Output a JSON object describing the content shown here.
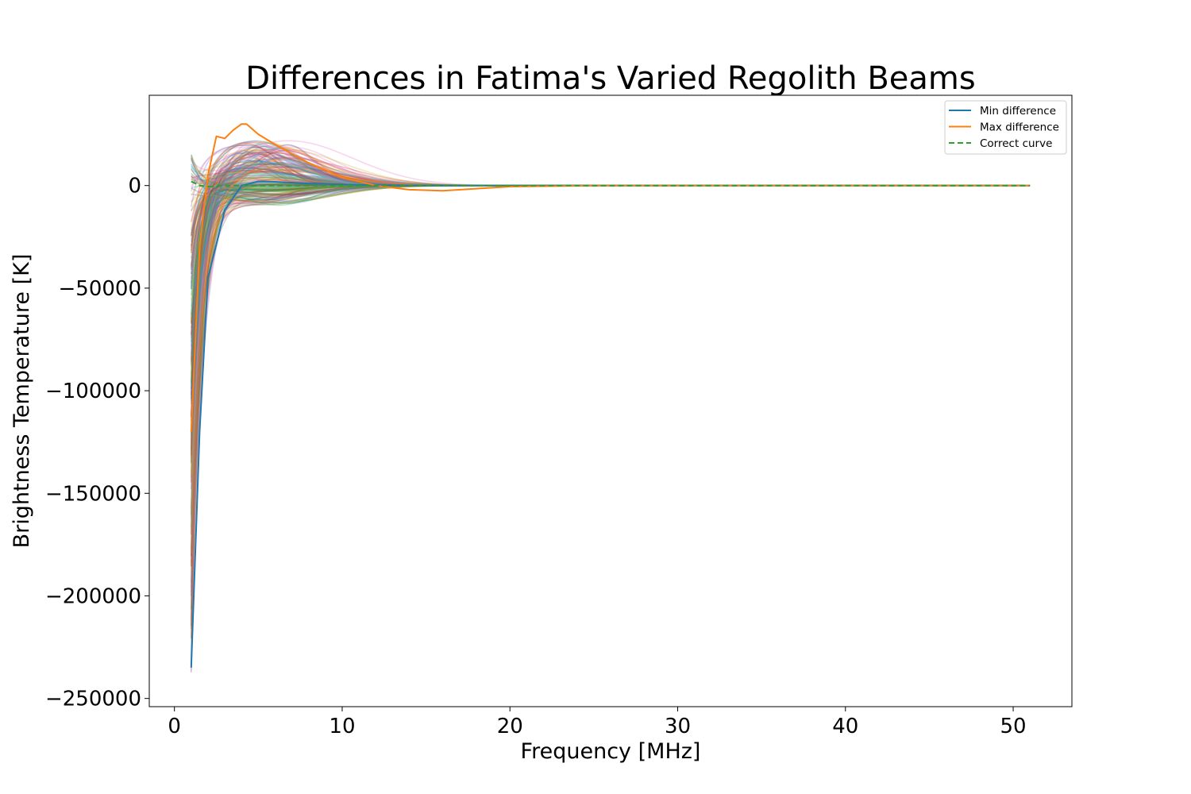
{
  "chart_data": {
    "type": "line",
    "title": "Differences in Fatima's Varied Regolith Beams",
    "xlabel": "Frequency [MHz]",
    "ylabel": "Brightness Temperature [K]",
    "xlim": [
      -1.5,
      53.5
    ],
    "ylim": [
      -254000,
      44000
    ],
    "xticks": [
      0,
      10,
      20,
      30,
      40,
      50
    ],
    "xtick_labels": [
      "0",
      "10",
      "20",
      "30",
      "40",
      "50"
    ],
    "yticks": [
      0,
      -50000,
      -100000,
      -150000,
      -200000,
      -250000
    ],
    "ytick_labels": [
      "0",
      "−50000",
      "−100000",
      "−150000",
      "−200000",
      "−250000"
    ],
    "grid": false,
    "legend_position": "top-right",
    "ensemble": {
      "description_count": 200,
      "x_range": [
        1,
        51
      ],
      "value_range_at_1MHz": [
        -240000,
        18000
      ],
      "peak_region_MHz": [
        3,
        8
      ]
    },
    "series": [
      {
        "name": "Min difference",
        "color": "#1f77b4",
        "style": "solid",
        "x": [
          1,
          1.5,
          2,
          3,
          4,
          5,
          6,
          8,
          10,
          12,
          15,
          20,
          25,
          30,
          40,
          51
        ],
        "y": [
          -235000,
          -120000,
          -45000,
          -12000,
          0,
          2000,
          1800,
          1000,
          500,
          200,
          0,
          -100,
          0,
          0,
          0,
          0
        ]
      },
      {
        "name": "Max difference",
        "color": "#ff7f0e",
        "style": "solid",
        "x": [
          1,
          1.5,
          2,
          2.5,
          3,
          3.5,
          4,
          4.3,
          5,
          6,
          8,
          10,
          12,
          14,
          16,
          18,
          20,
          25,
          30,
          40,
          51
        ],
        "y": [
          -120000,
          -30000,
          5000,
          24000,
          23000,
          27000,
          30000,
          30000,
          25000,
          20000,
          11000,
          4000,
          0,
          -2000,
          -2500,
          -1500,
          -500,
          0,
          0,
          0,
          0
        ]
      },
      {
        "name": "Correct curve",
        "color": "#2ca02c",
        "style": "dashed",
        "x": [
          1,
          1.5,
          2,
          3,
          5,
          10,
          20,
          30,
          40,
          51
        ],
        "y": [
          2000,
          0,
          -500,
          0,
          0,
          0,
          0,
          0,
          0,
          0
        ]
      }
    ]
  }
}
